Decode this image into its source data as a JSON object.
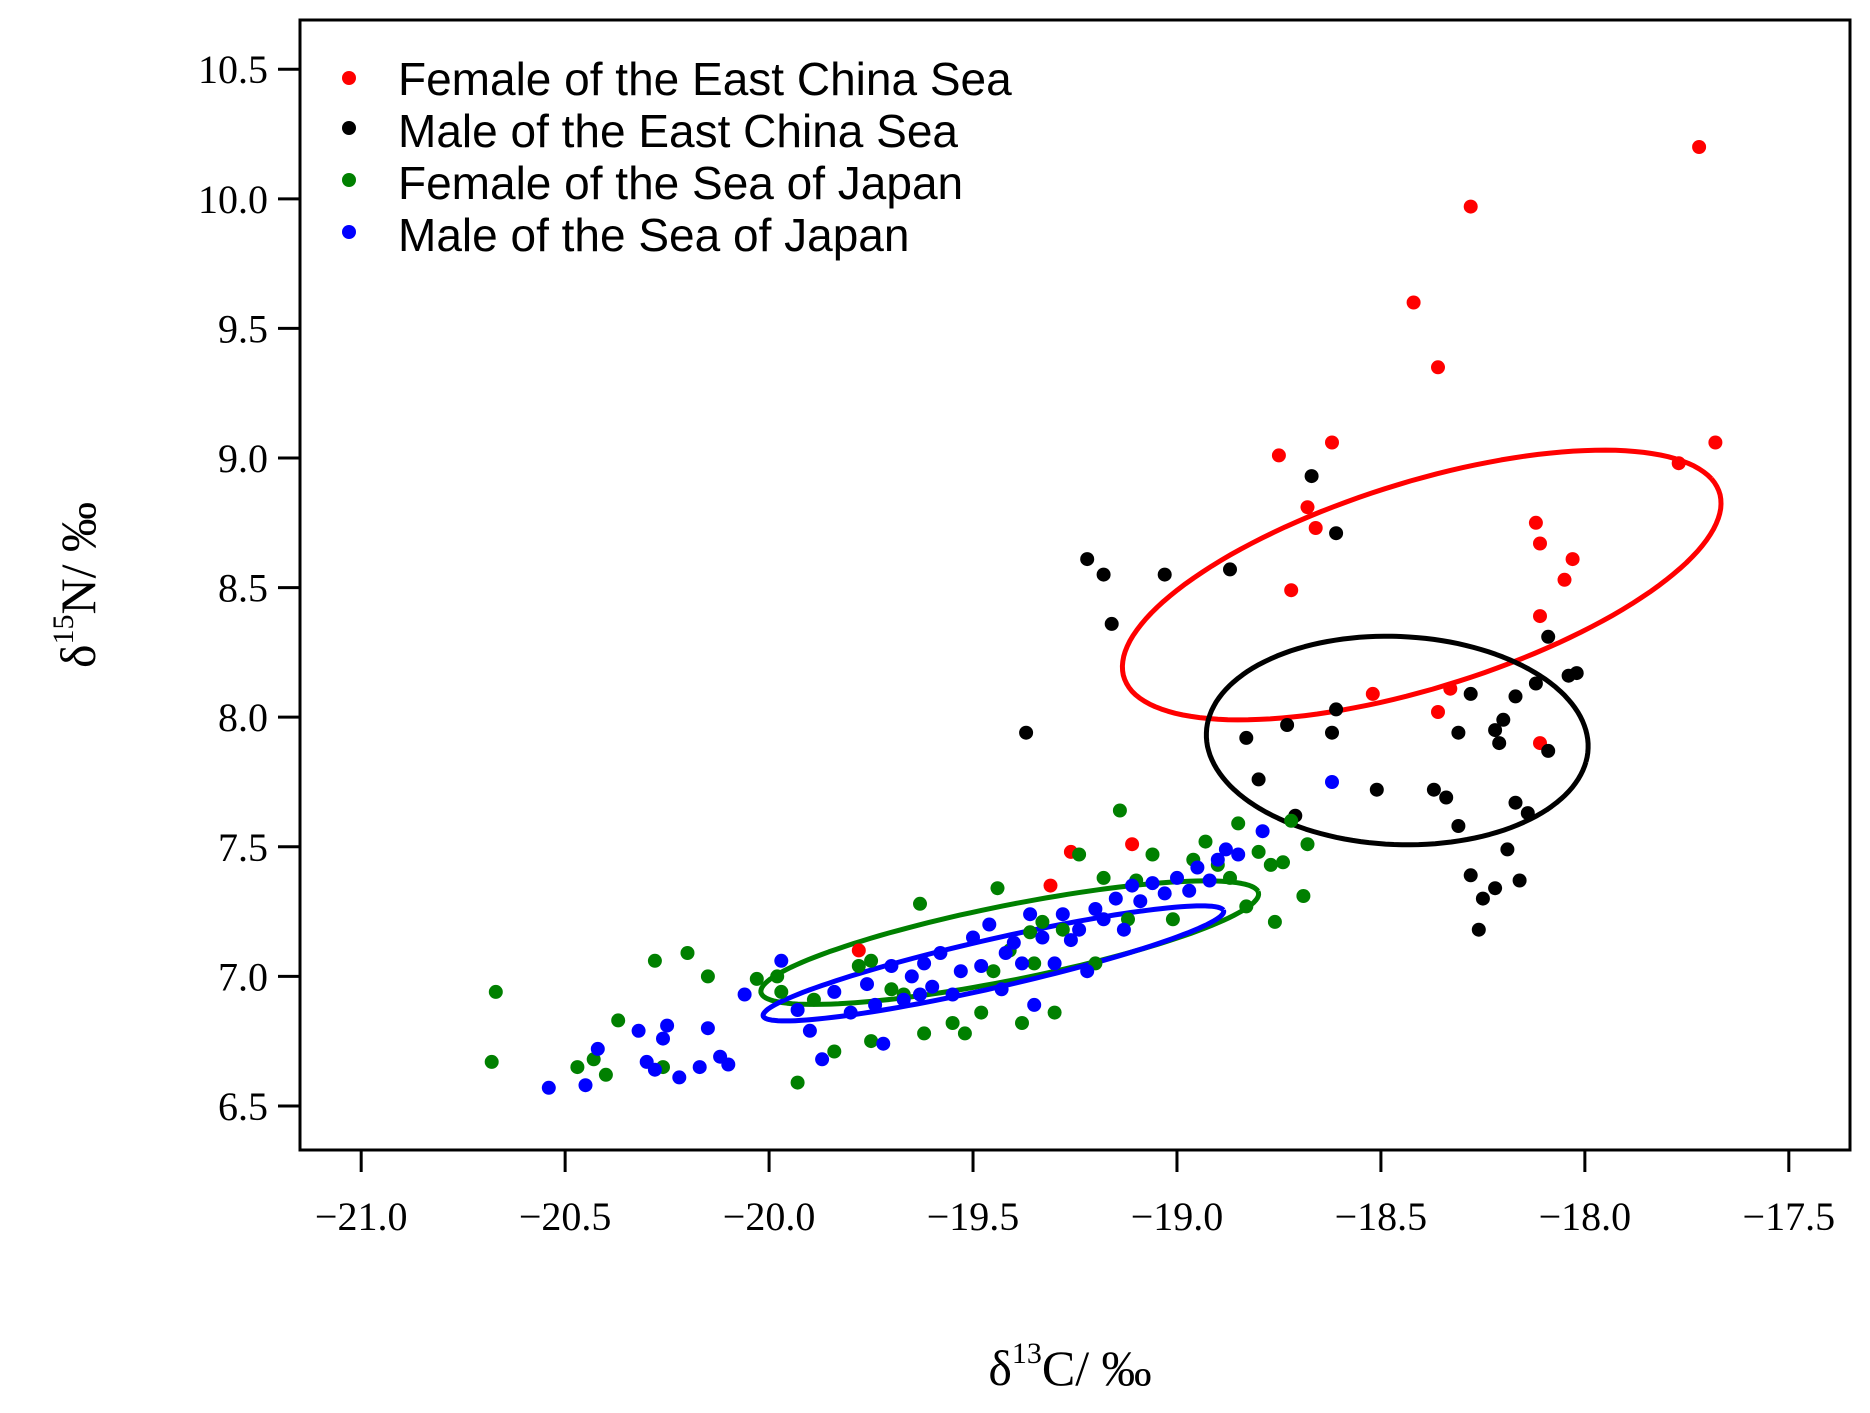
{
  "chart_data": {
    "type": "scatter",
    "x_axis": {
      "symbol": "δ",
      "superscript": "13",
      "element": "C",
      "unit": "/ ‰",
      "range": [
        -21.15,
        -17.35
      ],
      "ticks": [
        -21.0,
        -20.5,
        -20.0,
        -19.5,
        -19.0,
        -18.5,
        -18.0,
        -17.5
      ],
      "tick_labels": [
        "−21.0",
        "−20.5",
        "−20.0",
        "−19.5",
        "−19.0",
        "−18.5",
        "−18.0",
        "−17.5"
      ]
    },
    "y_axis": {
      "symbol": "δ",
      "superscript": "15",
      "element": "N",
      "unit": "/ ‰",
      "range": [
        6.33,
        10.69
      ],
      "ticks": [
        6.5,
        7.0,
        7.5,
        8.0,
        8.5,
        9.0,
        9.5,
        10.0,
        10.5
      ],
      "tick_labels": [
        "6.5",
        "7.0",
        "7.5",
        "8.0",
        "8.5",
        "9.0",
        "9.5",
        "10.0",
        "10.5"
      ]
    },
    "grid": false,
    "legend_position": "top-left",
    "series": [
      {
        "name": "Female of the East China Sea",
        "color": "#ff0000",
        "points": [
          [
            -17.72,
            10.2
          ],
          [
            -18.28,
            9.97
          ],
          [
            -18.42,
            9.6
          ],
          [
            -18.36,
            9.35
          ],
          [
            -18.62,
            9.06
          ],
          [
            -18.75,
            9.01
          ],
          [
            -18.68,
            8.81
          ],
          [
            -18.66,
            8.73
          ],
          [
            -18.72,
            8.49
          ],
          [
            -17.77,
            8.98
          ],
          [
            -17.68,
            9.06
          ],
          [
            -18.12,
            8.75
          ],
          [
            -18.11,
            8.67
          ],
          [
            -18.03,
            8.61
          ],
          [
            -18.05,
            8.53
          ],
          [
            -18.11,
            8.39
          ],
          [
            -18.52,
            8.09
          ],
          [
            -18.33,
            8.11
          ],
          [
            -18.36,
            8.02
          ],
          [
            -18.11,
            7.9
          ],
          [
            -19.11,
            7.51
          ],
          [
            -19.26,
            7.48
          ],
          [
            -19.31,
            7.35
          ],
          [
            -19.78,
            7.1
          ]
        ],
        "ellipse": {
          "cx": -18.4,
          "cy": 8.51,
          "a": 0.82,
          "b": 0.37,
          "angle_deg": 30
        }
      },
      {
        "name": "Male of the East China Sea",
        "color": "#000000",
        "points": [
          [
            -18.67,
            8.93
          ],
          [
            -18.61,
            8.71
          ],
          [
            -19.22,
            8.61
          ],
          [
            -19.18,
            8.55
          ],
          [
            -19.03,
            8.55
          ],
          [
            -18.87,
            8.57
          ],
          [
            -19.16,
            8.36
          ],
          [
            -19.37,
            7.94
          ],
          [
            -18.61,
            8.03
          ],
          [
            -18.62,
            7.94
          ],
          [
            -18.73,
            7.97
          ],
          [
            -18.83,
            7.92
          ],
          [
            -18.8,
            7.76
          ],
          [
            -18.71,
            7.62
          ],
          [
            -18.51,
            7.72
          ],
          [
            -18.28,
            8.09
          ],
          [
            -18.22,
            7.95
          ],
          [
            -18.2,
            7.99
          ],
          [
            -18.17,
            8.08
          ],
          [
            -18.12,
            8.13
          ],
          [
            -18.04,
            8.16
          ],
          [
            -18.02,
            8.17
          ],
          [
            -18.09,
            8.31
          ],
          [
            -18.09,
            7.87
          ],
          [
            -18.21,
            7.9
          ],
          [
            -18.31,
            7.94
          ],
          [
            -18.37,
            7.72
          ],
          [
            -18.34,
            7.69
          ],
          [
            -18.31,
            7.58
          ],
          [
            -18.17,
            7.67
          ],
          [
            -18.14,
            7.63
          ],
          [
            -18.19,
            7.49
          ],
          [
            -18.16,
            7.37
          ],
          [
            -18.22,
            7.34
          ],
          [
            -18.25,
            7.3
          ],
          [
            -18.28,
            7.39
          ],
          [
            -18.26,
            7.18
          ]
        ],
        "ellipse": {
          "cx": -18.46,
          "cy": 7.91,
          "a": 0.47,
          "b": 0.4,
          "angle_deg": -10
        }
      },
      {
        "name": "Female of the Sea of Japan",
        "color": "#008000",
        "points": [
          [
            -20.67,
            6.94
          ],
          [
            -20.68,
            6.67
          ],
          [
            -20.47,
            6.65
          ],
          [
            -20.43,
            6.68
          ],
          [
            -20.4,
            6.62
          ],
          [
            -20.37,
            6.83
          ],
          [
            -20.28,
            7.06
          ],
          [
            -20.26,
            6.65
          ],
          [
            -20.2,
            7.09
          ],
          [
            -20.15,
            7.0
          ],
          [
            -20.03,
            6.99
          ],
          [
            -19.98,
            7.0
          ],
          [
            -19.97,
            6.94
          ],
          [
            -19.93,
            6.59
          ],
          [
            -19.89,
            6.91
          ],
          [
            -19.84,
            6.71
          ],
          [
            -19.78,
            7.04
          ],
          [
            -19.75,
            6.75
          ],
          [
            -19.75,
            7.06
          ],
          [
            -19.7,
            6.95
          ],
          [
            -19.67,
            6.93
          ],
          [
            -19.63,
            7.28
          ],
          [
            -19.62,
            6.78
          ],
          [
            -19.55,
            6.82
          ],
          [
            -19.52,
            6.78
          ],
          [
            -19.48,
            6.86
          ],
          [
            -19.45,
            7.02
          ],
          [
            -19.44,
            7.34
          ],
          [
            -19.41,
            7.1
          ],
          [
            -19.38,
            6.82
          ],
          [
            -19.36,
            7.17
          ],
          [
            -19.35,
            7.05
          ],
          [
            -19.33,
            7.21
          ],
          [
            -19.3,
            6.86
          ],
          [
            -19.28,
            7.18
          ],
          [
            -19.24,
            7.47
          ],
          [
            -19.2,
            7.05
          ],
          [
            -19.18,
            7.38
          ],
          [
            -19.14,
            7.64
          ],
          [
            -19.12,
            7.22
          ],
          [
            -19.1,
            7.37
          ],
          [
            -19.06,
            7.47
          ],
          [
            -19.01,
            7.22
          ],
          [
            -18.96,
            7.45
          ],
          [
            -18.93,
            7.52
          ],
          [
            -18.9,
            7.43
          ],
          [
            -18.87,
            7.38
          ],
          [
            -18.85,
            7.59
          ],
          [
            -18.83,
            7.27
          ],
          [
            -18.8,
            7.48
          ],
          [
            -18.77,
            7.43
          ],
          [
            -18.76,
            7.21
          ],
          [
            -18.74,
            7.44
          ],
          [
            -18.72,
            7.6
          ],
          [
            -18.69,
            7.31
          ],
          [
            -18.68,
            7.51
          ]
        ],
        "ellipse": {
          "cx": -19.41,
          "cy": 7.13,
          "a": 0.64,
          "b": 0.14,
          "angle_deg": 18
        }
      },
      {
        "name": "Male of the Sea of Japan",
        "color": "#0000ff",
        "points": [
          [
            -20.54,
            6.57
          ],
          [
            -20.45,
            6.58
          ],
          [
            -20.42,
            6.72
          ],
          [
            -20.32,
            6.79
          ],
          [
            -20.3,
            6.67
          ],
          [
            -20.28,
            6.64
          ],
          [
            -20.26,
            6.76
          ],
          [
            -20.25,
            6.81
          ],
          [
            -20.22,
            6.61
          ],
          [
            -20.17,
            6.65
          ],
          [
            -20.15,
            6.8
          ],
          [
            -20.12,
            6.69
          ],
          [
            -20.1,
            6.66
          ],
          [
            -20.06,
            6.93
          ],
          [
            -19.97,
            7.06
          ],
          [
            -19.93,
            6.87
          ],
          [
            -19.9,
            6.79
          ],
          [
            -19.87,
            6.68
          ],
          [
            -19.84,
            6.94
          ],
          [
            -19.8,
            6.86
          ],
          [
            -19.76,
            6.97
          ],
          [
            -19.74,
            6.89
          ],
          [
            -19.72,
            6.74
          ],
          [
            -19.7,
            7.04
          ],
          [
            -19.67,
            6.91
          ],
          [
            -19.65,
            7.0
          ],
          [
            -19.63,
            6.93
          ],
          [
            -19.62,
            7.05
          ],
          [
            -19.6,
            6.96
          ],
          [
            -19.58,
            7.09
          ],
          [
            -19.55,
            6.93
          ],
          [
            -19.53,
            7.02
          ],
          [
            -19.5,
            7.15
          ],
          [
            -19.48,
            7.04
          ],
          [
            -19.46,
            7.2
          ],
          [
            -19.43,
            6.95
          ],
          [
            -19.42,
            7.09
          ],
          [
            -19.4,
            7.13
          ],
          [
            -19.38,
            7.05
          ],
          [
            -19.36,
            7.24
          ],
          [
            -19.35,
            6.89
          ],
          [
            -19.33,
            7.15
          ],
          [
            -19.3,
            7.05
          ],
          [
            -19.28,
            7.24
          ],
          [
            -19.26,
            7.14
          ],
          [
            -19.24,
            7.18
          ],
          [
            -19.22,
            7.02
          ],
          [
            -19.2,
            7.26
          ],
          [
            -19.18,
            7.22
          ],
          [
            -19.15,
            7.3
          ],
          [
            -19.13,
            7.18
          ],
          [
            -19.11,
            7.35
          ],
          [
            -19.09,
            7.29
          ],
          [
            -19.06,
            7.36
          ],
          [
            -19.03,
            7.32
          ],
          [
            -19.0,
            7.38
          ],
          [
            -18.97,
            7.33
          ],
          [
            -18.95,
            7.42
          ],
          [
            -18.92,
            7.37
          ],
          [
            -18.9,
            7.45
          ],
          [
            -18.88,
            7.49
          ],
          [
            -18.85,
            7.47
          ],
          [
            -18.79,
            7.56
          ],
          [
            -18.62,
            7.75
          ]
        ],
        "ellipse": {
          "cx": -19.45,
          "cy": 7.05,
          "a": 0.6,
          "b": 0.09,
          "angle_deg": 20
        }
      }
    ]
  }
}
